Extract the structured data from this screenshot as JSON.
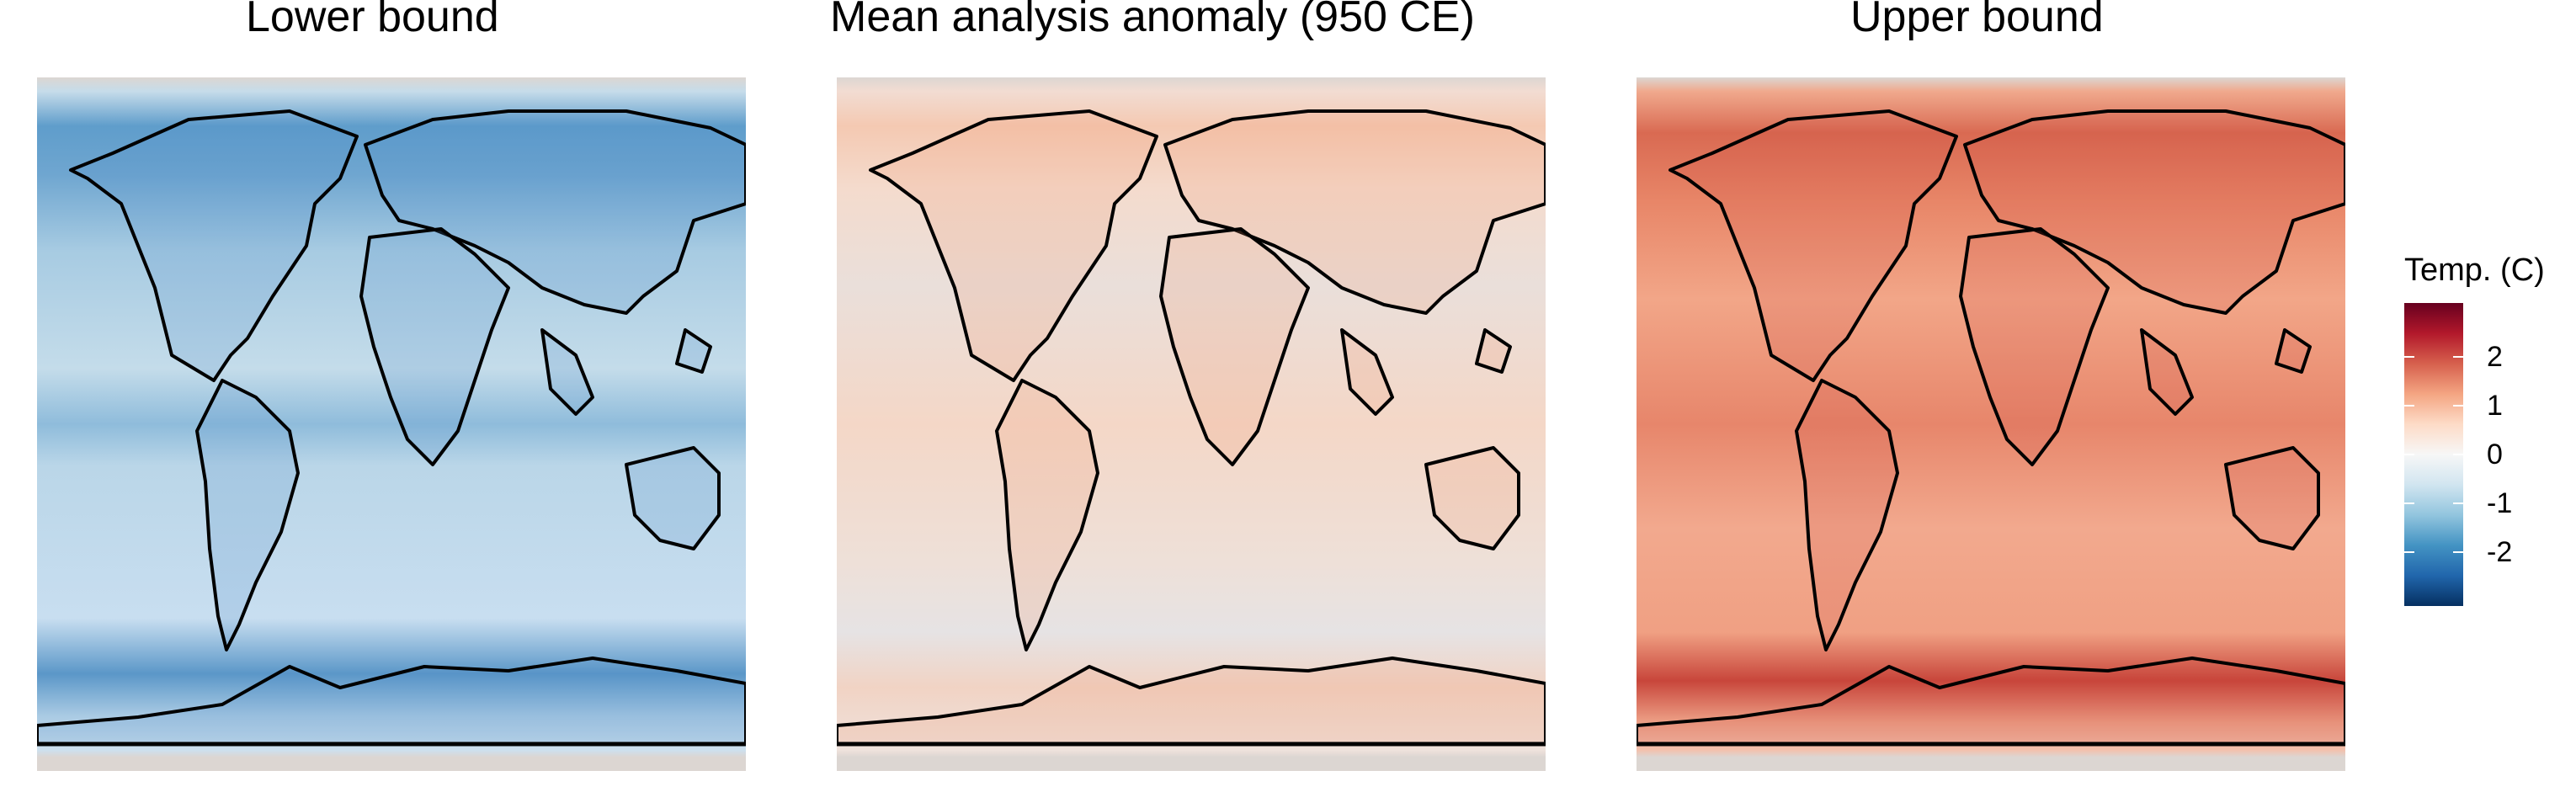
{
  "panels": [
    {
      "title": "Lower bound",
      "field": "lower"
    },
    {
      "title": "Mean analysis anomaly (950 CE)",
      "field": "mean"
    },
    {
      "title": "Upper bound",
      "field": "upper"
    }
  ],
  "legend": {
    "title": "Temp. (C)",
    "ticks": [
      {
        "label": "2",
        "value": 2
      },
      {
        "label": "1",
        "value": 1
      },
      {
        "label": "0",
        "value": 0
      },
      {
        "label": "-1",
        "value": -1
      },
      {
        "label": "-2",
        "value": -2
      }
    ],
    "range": [
      -3.1,
      3.1
    ],
    "colors": [
      "#053061",
      "#2166ac",
      "#4393c3",
      "#92c5de",
      "#d1e5f0",
      "#f7f7f7",
      "#fddbc7",
      "#f4a582",
      "#d6604d",
      "#b2182b",
      "#67001f"
    ]
  },
  "map": {
    "projection": "equirectangular",
    "outline_color": "#000000",
    "missing_color": "#dcd6d2"
  }
}
